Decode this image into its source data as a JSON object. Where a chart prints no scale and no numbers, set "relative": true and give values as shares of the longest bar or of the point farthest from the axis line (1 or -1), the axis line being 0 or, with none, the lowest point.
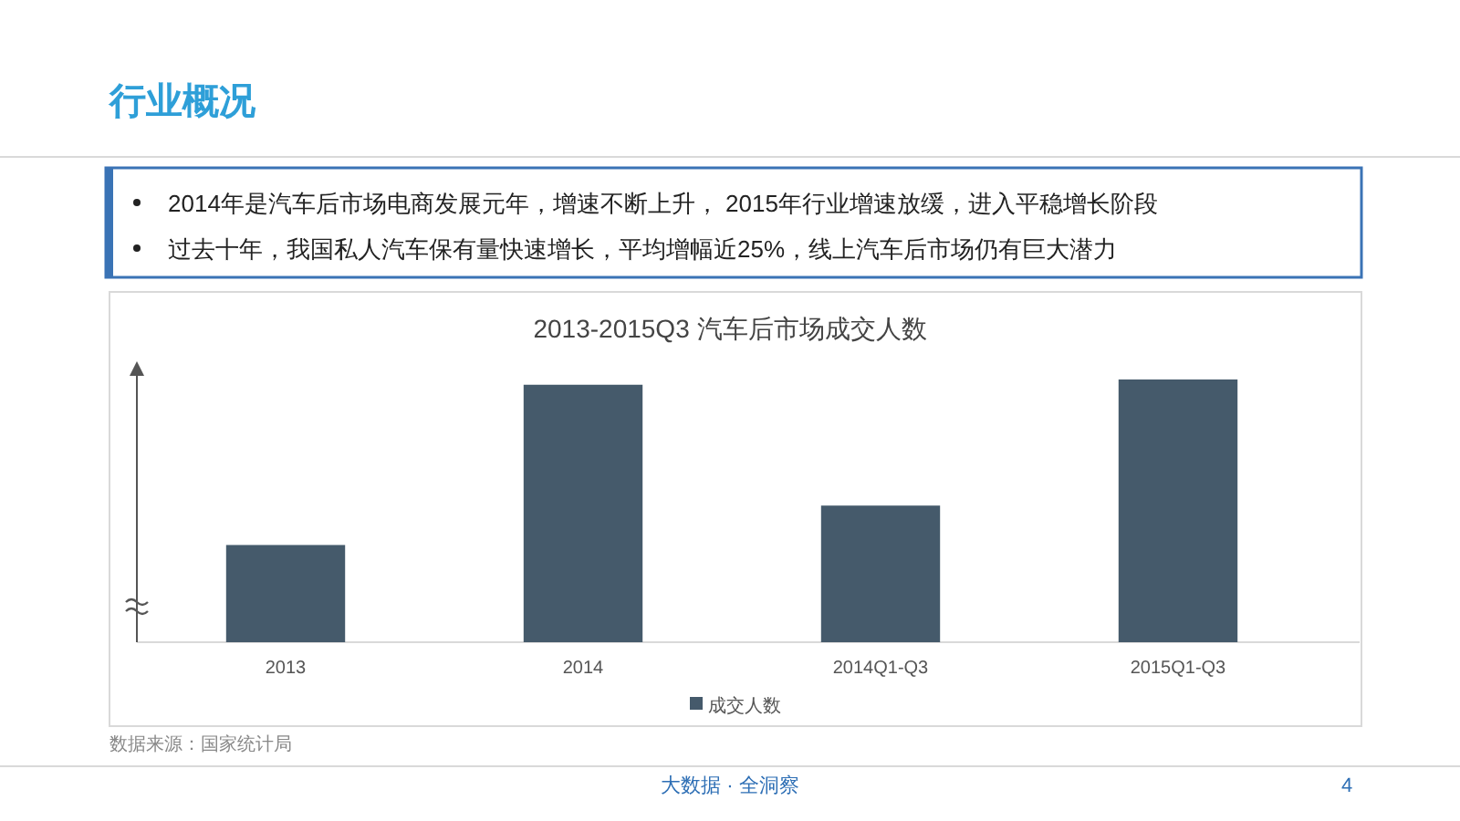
{
  "chart_data": {
    "type": "bar",
    "title": "2013-2015Q3 汽车后市场成交人数",
    "categories": [
      "2013",
      "2014",
      "2014Q1-Q3",
      "2015Q1-Q3"
    ],
    "series": [
      {
        "name": "成交人数",
        "color": "#455a6b",
        "values": [
          0.37,
          0.98,
          0.52,
          1
        ]
      }
    ],
    "relative": true,
    "legend": "bottom",
    "annotations": [
      "行业概况",
      "2014年是汽车后市场电商发展元年，增速不断上升， 2015年行业增速放缓，进入平稳增长阶段",
      "过去十年，我国私人汽车保有量快速增长，平均增幅近25%，线上汽车后市场仍有巨大潜力",
      "数据来源：国家统计局",
      "大数据 · 全洞察",
      "4"
    ]
  }
}
